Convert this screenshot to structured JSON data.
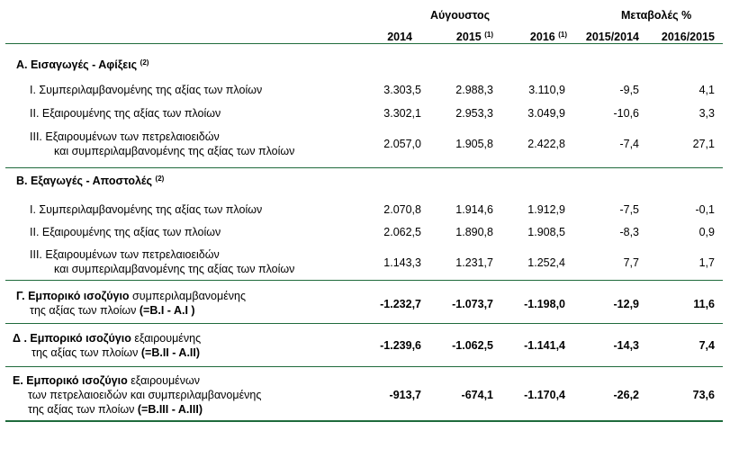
{
  "header": {
    "august": "Αύγουστος",
    "changes": "Μεταβολές %",
    "col_2014": "2014",
    "col_2015": "2015",
    "col_2015_note": "(1)",
    "col_2016": "2016",
    "col_2016_note": "(1)",
    "col_1514": "2015/2014",
    "col_1615": "2016/2015"
  },
  "sections": {
    "A": {
      "title": "Α. Εισαγωγές - Αφίξεις",
      "note": "(2)",
      "rows": [
        {
          "label": "Ι.  Συμπεριλαμβανομένης  της αξίας των πλοίων",
          "v2014": "3.303,5",
          "v2015": "2.988,3",
          "v2016": "3.110,9",
          "c1514": "-9,5",
          "c1615": "4,1"
        },
        {
          "label": "ΙΙ.  Εξαιρουμένης  της αξίας των πλοίων",
          "v2014": "3.302,1",
          "v2015": "2.953,3",
          "v2016": "3.049,9",
          "c1514": "-10,6",
          "c1615": "3,3"
        },
        {
          "label1": "ΙΙΙ.  Εξαιρουμένων των πετρελαιοειδών",
          "label2": "και συμπεριλαμβανομένης της αξίας των πλοίων",
          "v2014": "2.057,0",
          "v2015": "1.905,8",
          "v2016": "2.422,8",
          "c1514": "-7,4",
          "c1615": "27,1"
        }
      ]
    },
    "B": {
      "title": "Β. Εξαγωγές - Αποστολές",
      "note": "(2)",
      "rows": [
        {
          "label": "Ι.  Συμπεριλαμβανομένης της αξίας των πλοίων",
          "v2014": "2.070,8",
          "v2015": "1.914,6",
          "v2016": "1.912,9",
          "c1514": "-7,5",
          "c1615": "-0,1"
        },
        {
          "label": "ΙΙ.  Εξαιρουμένης της αξίας των πλοίων",
          "v2014": "2.062,5",
          "v2015": "1.890,8",
          "v2016": "1.908,5",
          "c1514": "-8,3",
          "c1615": "0,9"
        },
        {
          "label1": "ΙΙΙ.  Εξαιρουμένων  των πετρελαιοειδών",
          "label2": "και συμπεριλαμβανομένης της αξίας των πλοίων",
          "v2014": "1.143,3",
          "v2015": "1.231,7",
          "v2016": "1.252,4",
          "c1514": "7,7",
          "c1615": "1,7"
        }
      ]
    },
    "G": {
      "label1_bold": "Γ. Εμπορικό ισοζύγιο",
      "label1_rest": "συμπεριλαμβανομένης",
      "label2_rest": "της αξίας των πλοίων",
      "label2_bold": "(=Β.Ι - Α.Ι )",
      "v2014": "-1.232,7",
      "v2015": "-1.073,7",
      "v2016": "-1.198,0",
      "c1514": "-12,9",
      "c1615": "11,6"
    },
    "D": {
      "label1_bold": "Δ . Εμπορικό ισοζύγιο",
      "label1_rest": "εξαιρουμένης",
      "label2_rest": "της αξίας των πλοίων",
      "label2_bold": "(=Β.ΙΙ - Α.ΙΙ)",
      "v2014": "-1.239,6",
      "v2015": "-1.062,5",
      "v2016": "-1.141,4",
      "c1514": "-14,3",
      "c1615": "7,4"
    },
    "E": {
      "label1_bold": "Ε. Εμπορικό ισοζύγιο",
      "label1_rest": "εξαιρουμένων",
      "label2": "των πετρελαιοειδών και συμπεριλαμβανομένης",
      "label3_rest": "της αξίας των πλοίων",
      "label3_bold": "(=Β.ΙΙΙ - Α.ΙΙΙ)",
      "v2014": "-913,7",
      "v2015": "-674,1",
      "v2016": "-1.170,4",
      "c1514": "-26,2",
      "c1615": "73,6"
    }
  }
}
